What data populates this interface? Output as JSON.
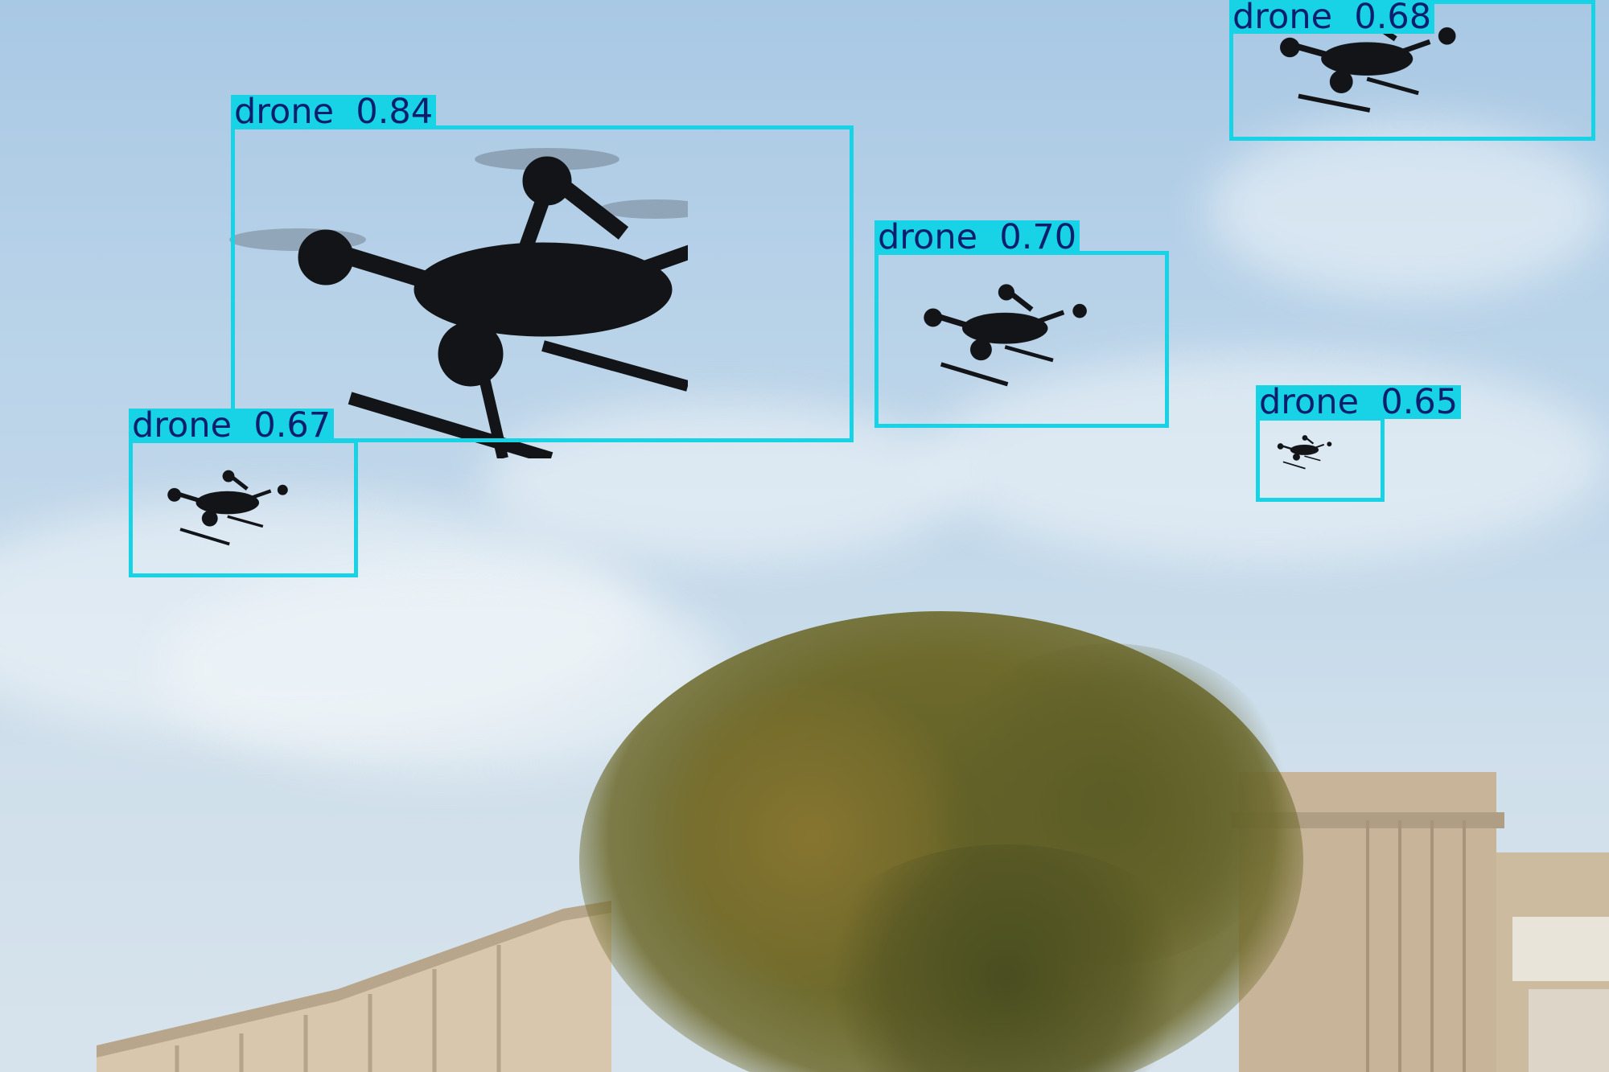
{
  "image": {
    "description_colors": {
      "sky": "#b6d1e8",
      "box": "#18d3e6",
      "label_text": "#0b1f6e",
      "drone": "#121417",
      "building": "#c9b49a",
      "foliage": "#6b6a2a"
    }
  },
  "detections": [
    {
      "class": "drone",
      "confidence": "0.84",
      "text": "drone  0.84"
    },
    {
      "class": "drone",
      "confidence": "0.70",
      "text": "drone  0.70"
    },
    {
      "class": "drone",
      "confidence": "0.68",
      "text": "drone  0.68"
    },
    {
      "class": "drone",
      "confidence": "0.67",
      "text": "drone  0.67"
    },
    {
      "class": "drone",
      "confidence": "0.65",
      "text": "drone  0.65"
    }
  ]
}
